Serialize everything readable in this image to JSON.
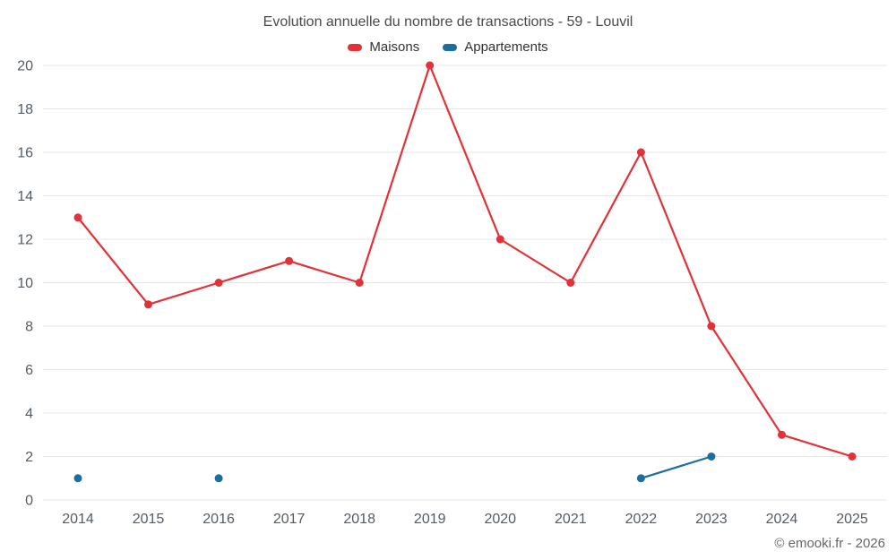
{
  "chart_data": {
    "type": "line",
    "title": "Evolution annuelle du nombre de transactions - 59 - Louvil",
    "categories": [
      "2014",
      "2015",
      "2016",
      "2017",
      "2018",
      "2019",
      "2020",
      "2021",
      "2022",
      "2023",
      "2024",
      "2025"
    ],
    "series": [
      {
        "name": "Maisons",
        "color": "#e23137",
        "values": [
          13,
          9,
          10,
          11,
          10,
          20,
          12,
          10,
          16,
          8,
          3,
          2
        ]
      },
      {
        "name": "Appartements",
        "color": "#1b6f9e",
        "values": [
          1,
          null,
          1,
          null,
          null,
          null,
          null,
          null,
          1,
          2,
          null,
          null
        ]
      }
    ],
    "xlabel": "",
    "ylabel": "",
    "ylim": [
      0,
      20
    ],
    "ytick_step": 2,
    "grid": "horizontal",
    "gridline_color": "#e6e6e6",
    "axis_label_color": "#525c66",
    "legend_position": "top"
  },
  "footer": {
    "credit": "© emooki.fr - 2026"
  }
}
